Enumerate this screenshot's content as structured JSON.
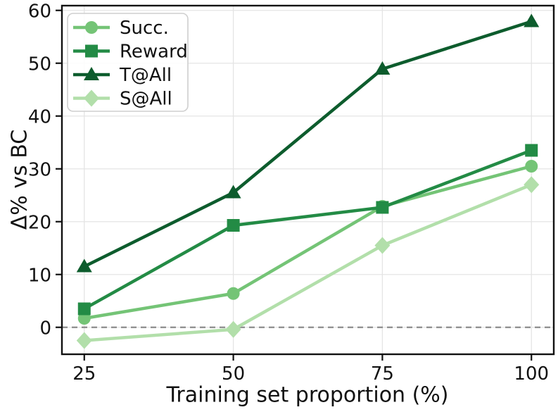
{
  "chart_data": {
    "type": "line",
    "title": "",
    "xlabel": "Training set proportion (%)",
    "ylabel": "Δ% vs BC",
    "x": [
      25,
      50,
      75,
      100
    ],
    "xticks": [
      25,
      50,
      75,
      100
    ],
    "yticks": [
      0,
      10,
      20,
      30,
      40,
      50,
      60
    ],
    "xlim": [
      21.25,
      103.75
    ],
    "ylim": [
      -5.1,
      60.9
    ],
    "grid": true,
    "legend_position": "upper left",
    "zero_line": {
      "y": 0,
      "style": "dashed",
      "color": "#8c8c8c"
    },
    "series": [
      {
        "name": "Succ.",
        "marker": "circle",
        "color": "#74c476",
        "values": [
          1.7,
          6.4,
          22.9,
          30.5
        ]
      },
      {
        "name": "Reward",
        "marker": "square",
        "color": "#238b45",
        "values": [
          3.5,
          19.3,
          22.7,
          33.5
        ]
      },
      {
        "name": "T@All",
        "marker": "triangle",
        "color": "#0d5c2d",
        "values": [
          11.5,
          25.5,
          48.9,
          57.9
        ]
      },
      {
        "name": "S@All",
        "marker": "diamond",
        "color": "#b2dfaa",
        "values": [
          -2.5,
          -0.4,
          15.5,
          27.0
        ]
      }
    ]
  }
}
